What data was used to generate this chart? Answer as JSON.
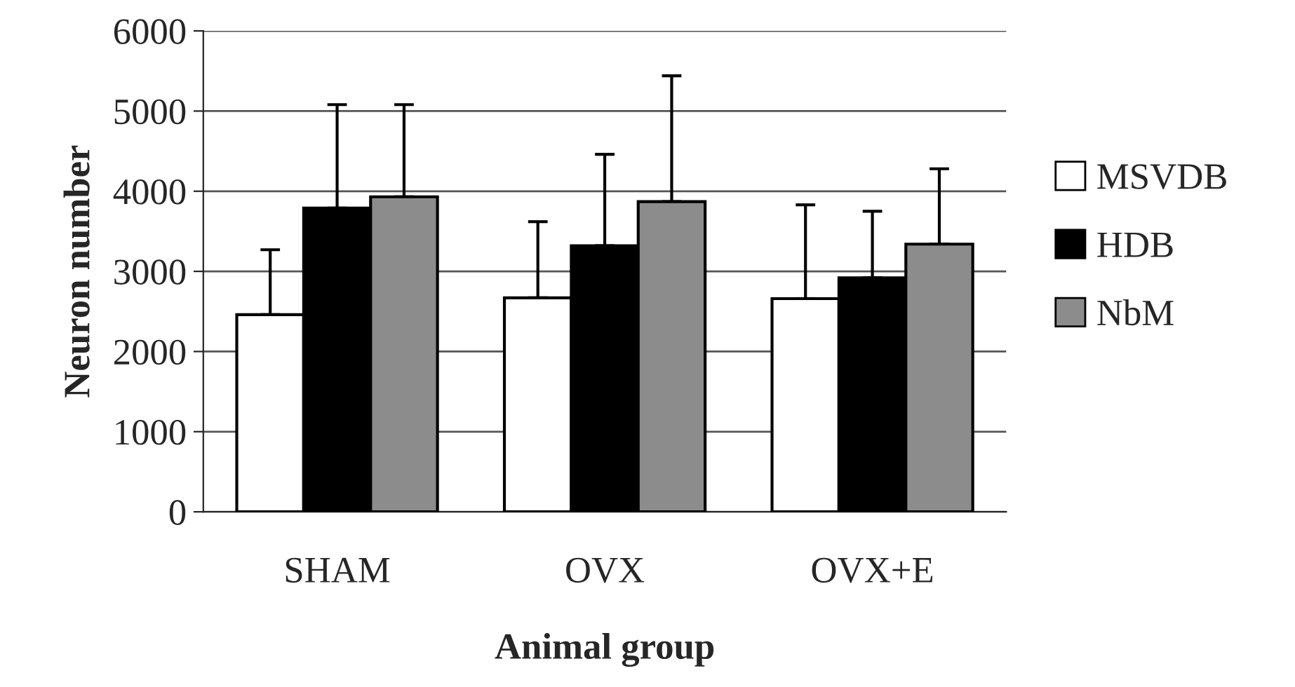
{
  "chart_data": {
    "type": "bar",
    "xlabel": "Animal group",
    "ylabel": "Neuron number",
    "categories": [
      "SHAM",
      "OVX",
      "OVX+E"
    ],
    "series": [
      {
        "name": "MSVDB",
        "color": "#ffffff",
        "values": [
          2460,
          2670,
          2660
        ],
        "errors": [
          [
            2460,
            3270
          ],
          [
            2670,
            3620
          ],
          [
            2660,
            3830
          ]
        ]
      },
      {
        "name": "HDB",
        "color": "#000000",
        "values": [
          3790,
          3320,
          2920
        ],
        "errors": [
          [
            3790,
            5080
          ],
          [
            3320,
            4460
          ],
          [
            2920,
            3750
          ]
        ]
      },
      {
        "name": "NbM",
        "color": "#8c8c8c",
        "values": [
          3930,
          3870,
          3340
        ],
        "errors": [
          [
            3930,
            5080
          ],
          [
            3870,
            5440
          ],
          [
            3340,
            4280
          ]
        ]
      }
    ],
    "ylim": [
      0,
      6000
    ],
    "yticks": [
      0,
      1000,
      2000,
      3000,
      4000,
      5000,
      6000
    ],
    "grid": "y",
    "legend": "right"
  }
}
